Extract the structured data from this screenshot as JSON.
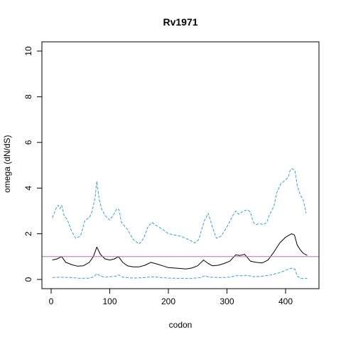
{
  "chart_data": {
    "type": "line",
    "title": "Rv1971",
    "xlabel": "codon",
    "ylabel": "omega (dN/dS)",
    "xlim": [
      0,
      440
    ],
    "ylim": [
      0,
      10
    ],
    "x_ticks": [
      0,
      100,
      200,
      300,
      400
    ],
    "x_tick_labels": [
      "0",
      "100",
      "200",
      "300",
      "400"
    ],
    "y_ticks": [
      0,
      2,
      4,
      6,
      8,
      10
    ],
    "y_tick_labels": [
      "0",
      "2",
      "4",
      "6",
      "8",
      "10"
    ],
    "grid": false,
    "legend": "none",
    "colors": {
      "mean_line": "#000000",
      "upper_band": "#3aa0d8",
      "lower_band": "#3aa0d8",
      "reference_line": "#cc66cc",
      "axes": "#000000"
    },
    "reference_line": {
      "y": 1
    },
    "series": [
      {
        "style": "solid",
        "x": [
          2,
          10,
          18,
          25,
          35,
          45,
          55,
          65,
          72,
          78,
          84,
          92,
          100,
          108,
          115,
          122,
          130,
          140,
          150,
          160,
          170,
          180,
          190,
          200,
          210,
          220,
          230,
          240,
          250,
          260,
          268,
          275,
          285,
          295,
          305,
          315,
          322,
          330,
          340,
          350,
          360,
          370,
          380,
          390,
          400,
          410,
          415,
          420,
          425,
          430,
          437
        ],
        "values": [
          0.85,
          0.9,
          1.0,
          0.75,
          0.65,
          0.58,
          0.6,
          0.75,
          1.0,
          1.42,
          1.1,
          0.9,
          0.85,
          0.9,
          1.0,
          0.75,
          0.6,
          0.55,
          0.55,
          0.62,
          0.75,
          0.68,
          0.6,
          0.52,
          0.5,
          0.48,
          0.46,
          0.5,
          0.6,
          0.85,
          0.7,
          0.6,
          0.62,
          0.7,
          0.8,
          1.08,
          1.05,
          1.1,
          0.8,
          0.75,
          0.72,
          0.85,
          1.2,
          1.6,
          1.85,
          2.0,
          1.95,
          1.5,
          1.3,
          1.15,
          1.05
        ]
      },
      {
        "style": "dashed",
        "x": [
          2,
          8,
          12,
          15,
          18,
          22,
          28,
          35,
          42,
          50,
          58,
          65,
          70,
          75,
          78,
          82,
          86,
          92,
          100,
          108,
          112,
          116,
          120,
          130,
          140,
          150,
          158,
          165,
          172,
          180,
          190,
          200,
          210,
          220,
          230,
          238,
          245,
          252,
          258,
          262,
          268,
          275,
          282,
          290,
          300,
          310,
          315,
          320,
          328,
          335,
          340,
          345,
          350,
          355,
          362,
          368,
          372,
          380,
          385,
          392,
          400,
          405,
          408,
          412,
          416,
          420,
          425,
          430,
          435
        ],
        "values": [
          2.7,
          3.1,
          3.25,
          3.1,
          3.25,
          2.8,
          2.6,
          2.1,
          1.8,
          1.9,
          2.6,
          2.7,
          3.0,
          3.6,
          4.3,
          3.5,
          3.1,
          2.8,
          2.6,
          2.9,
          3.1,
          3.05,
          2.5,
          2.2,
          1.75,
          1.55,
          1.8,
          2.3,
          2.5,
          2.35,
          2.2,
          2.0,
          1.95,
          1.9,
          1.8,
          1.7,
          1.6,
          1.75,
          2.3,
          2.6,
          2.9,
          2.3,
          1.8,
          1.9,
          2.3,
          2.8,
          3.0,
          2.85,
          3.0,
          3.05,
          2.95,
          2.5,
          2.4,
          2.45,
          2.4,
          2.5,
          2.8,
          3.2,
          3.8,
          4.2,
          4.35,
          4.5,
          4.8,
          4.85,
          4.75,
          4.1,
          3.7,
          3.5,
          2.9
        ]
      },
      {
        "style": "dashed",
        "x": [
          2,
          15,
          25,
          35,
          50,
          65,
          72,
          78,
          84,
          92,
          100,
          110,
          115,
          122,
          140,
          160,
          170,
          180,
          200,
          220,
          240,
          255,
          262,
          270,
          290,
          305,
          315,
          325,
          335,
          345,
          360,
          375,
          390,
          400,
          408,
          412,
          416,
          420,
          425,
          437
        ],
        "values": [
          0.08,
          0.1,
          0.09,
          0.08,
          0.05,
          0.06,
          0.1,
          0.25,
          0.15,
          0.1,
          0.12,
          0.14,
          0.2,
          0.1,
          0.06,
          0.08,
          0.12,
          0.1,
          0.06,
          0.05,
          0.05,
          0.08,
          0.16,
          0.1,
          0.08,
          0.1,
          0.16,
          0.16,
          0.18,
          0.12,
          0.14,
          0.2,
          0.3,
          0.4,
          0.48,
          0.5,
          0.45,
          0.15,
          0.05,
          0.05
        ]
      }
    ]
  }
}
